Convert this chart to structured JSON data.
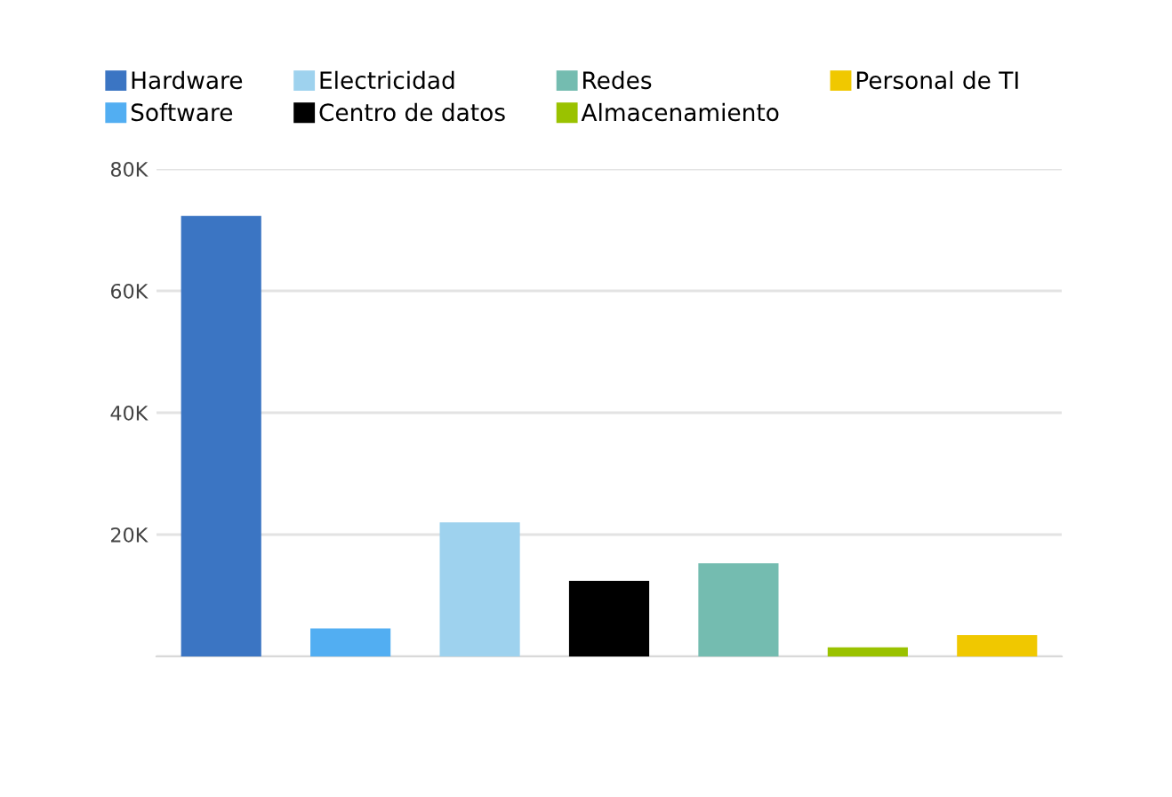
{
  "chart_data": {
    "type": "bar",
    "categories": [
      null,
      null,
      null,
      null,
      null,
      null,
      null
    ],
    "series": [
      {
        "name": "Hardware",
        "color": "#3b75c3",
        "values": [
          72.3,
          null,
          null,
          null,
          null,
          null,
          null
        ]
      },
      {
        "name": "Software",
        "color": "#52aef2",
        "values": [
          null,
          4.6,
          null,
          null,
          null,
          null,
          null
        ]
      },
      {
        "name": "Electricidad",
        "color": "#9ed2ee",
        "values": [
          null,
          null,
          22.0,
          null,
          null,
          null,
          null
        ]
      },
      {
        "name": "Centro de datos",
        "color": "#000000",
        "values": [
          null,
          null,
          null,
          12.4,
          null,
          null,
          null
        ]
      },
      {
        "name": "Redes",
        "color": "#74bcb0",
        "values": [
          null,
          null,
          null,
          null,
          15.3,
          null,
          null
        ]
      },
      {
        "name": "Almacenamiento",
        "color": "#9ac200",
        "values": [
          null,
          null,
          null,
          null,
          null,
          1.5,
          null
        ]
      },
      {
        "name": "Personal de TI",
        "color": "#f0c800",
        "values": [
          null,
          null,
          null,
          null,
          null,
          null,
          3.5
        ]
      }
    ],
    "ylim": [
      0,
      80
    ],
    "yticks": [
      {
        "value": 0,
        "label": null
      },
      {
        "value": 20,
        "label": "20K"
      },
      {
        "value": 40,
        "label": "40K"
      },
      {
        "value": 60,
        "label": "60K"
      },
      {
        "value": 80,
        "label": "80K"
      }
    ],
    "grid": "y",
    "legend": "top left",
    "tick_labels": "y"
  }
}
